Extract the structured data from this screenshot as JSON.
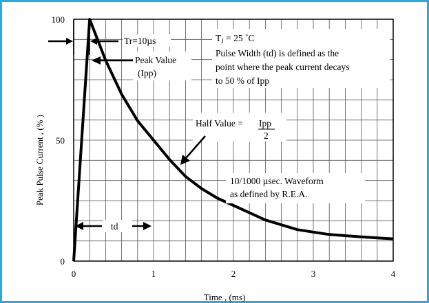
{
  "chart_data": {
    "type": "line",
    "title": "",
    "xlabel": "Time , (ms)",
    "ylabel": "Peak Pulse Current , (% )",
    "xlim": [
      0,
      4
    ],
    "ylim": [
      0,
      100
    ],
    "grid": true,
    "x_ticks": [
      "0",
      "1",
      "2",
      "3",
      "4"
    ],
    "y_ticks": [
      "0",
      "50",
      "100"
    ],
    "series": [
      {
        "values_x": [
          0,
          0.2,
          0.4,
          0.6,
          0.8,
          1.0,
          1.2,
          1.4,
          1.6,
          1.8,
          2.0,
          2.2,
          2.4,
          2.6,
          2.8,
          3.0,
          3.2,
          3.4,
          3.6,
          3.8,
          4.0
        ],
        "values_y": [
          0,
          100,
          83,
          69,
          58,
          50,
          42,
          35,
          30,
          26,
          23,
          20,
          17,
          15,
          13,
          12,
          11,
          10.5,
          10,
          9.6,
          9.2
        ]
      }
    ],
    "annotations": {
      "tr": "Tr=10µs",
      "peak_line1": "Peak Value",
      "peak_line2": "(Ipp)",
      "tj_main": "T",
      "tj_sub": "J",
      "tj_rest": " = 25 ˚C",
      "pw_line1": "Pulse Width (td) is defined as the",
      "pw_line2": "point where the peak current decays",
      "pw_line3": "to 50 % of Ipp",
      "half_label": "Half Value = ",
      "half_num": "Ipp",
      "half_den": "2",
      "wave_line1": "10/1000 µsec. Waveform",
      "wave_line2": "as defined by R.E.A.",
      "td": "td"
    }
  }
}
